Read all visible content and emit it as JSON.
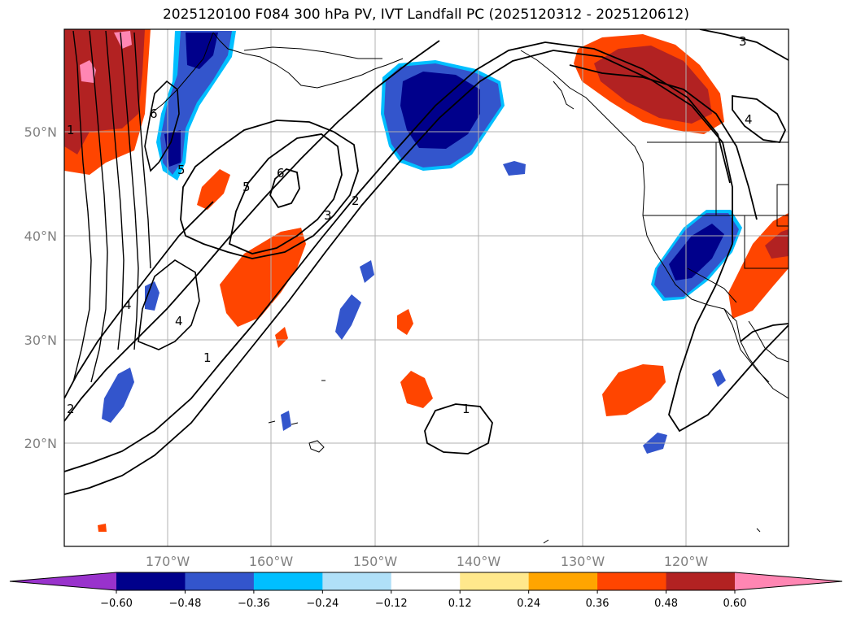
{
  "title": "2025120100 F084 300 hPa PV, IVT Landfall PC (2025120312 - 2025120612)",
  "axes": {
    "lat_ticks": [
      "50°N",
      "40°N",
      "30°N",
      "20°N"
    ],
    "lon_ticks": [
      "170°W",
      "160°W",
      "150°W",
      "140°W",
      "130°W",
      "120°W"
    ]
  },
  "colorbar": {
    "tick_labels": [
      "−0.60",
      "−0.48",
      "−0.36",
      "−0.24",
      "−0.12",
      "0.12",
      "0.24",
      "0.36",
      "0.48",
      "0.60"
    ],
    "colors": [
      "#9932cc",
      "#00008b",
      "#3355cc",
      "#00bfff",
      "#b0e0f8",
      "#ffffff",
      "#ffe88c",
      "#ffa500",
      "#ff4500",
      "#b22222",
      "#ff86b3"
    ]
  },
  "contour_labels": [
    "6",
    "5",
    "4",
    "3",
    "2",
    "1",
    "5",
    "4",
    "3",
    "2",
    "1",
    "6",
    "1",
    "3",
    "4",
    "2"
  ],
  "colors": {
    "neg_strong": "#00008b",
    "neg_mid": "#3355cc",
    "neg_light": "#00bfff",
    "pos_light": "#ffa500",
    "pos_mid": "#ff4500",
    "pos_strong": "#b22222",
    "pos_max": "#ff86b3"
  }
}
